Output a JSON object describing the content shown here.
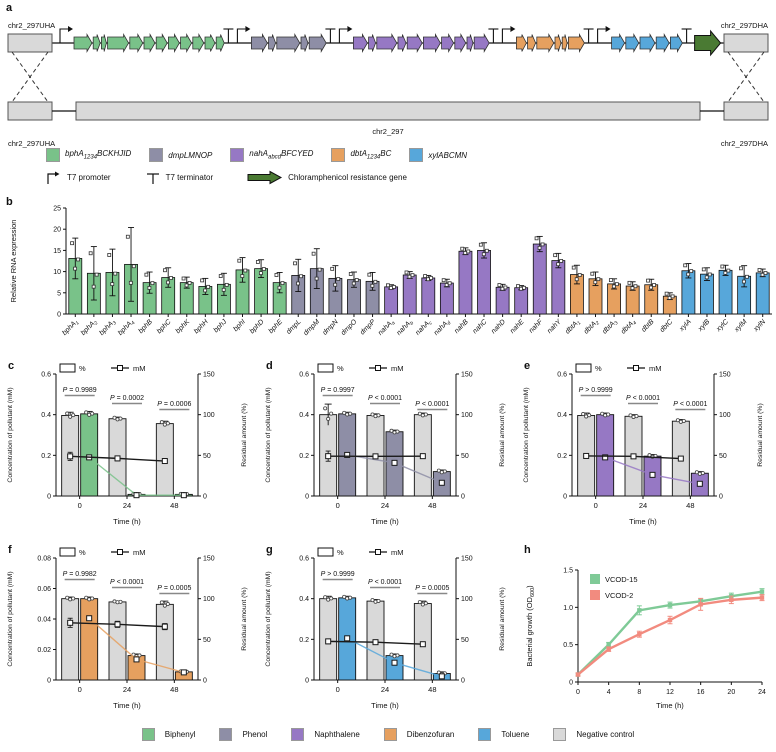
{
  "panels": {
    "a": "a",
    "b": "b",
    "c": "c",
    "d": "d",
    "e": "e",
    "f": "f",
    "g": "g",
    "h": "h"
  },
  "colors": {
    "biphenyl": "#79c289",
    "phenol": "#8e8ea6",
    "naphthalene": "#9678c4",
    "dibenzofuran": "#e6a05f",
    "toluene": "#57a7da",
    "negative": "#d9d9d9",
    "cm_gene": "#4a7a33",
    "vcod15": "#7fca97",
    "vcod2": "#f28b7f",
    "black": "#1a1a1a"
  },
  "panel_a": {
    "labels": {
      "top_left": "chr2_297UHA",
      "top_right": "chr2_297DHA",
      "bottom_left": "chr2_297UHA",
      "bottom_right": "chr2_297DHA",
      "center": "chr2_297"
    },
    "gene_groups": [
      {
        "color_key": "biphenyl",
        "widths": [
          18,
          7,
          5,
          21,
          13,
          11,
          11,
          11,
          11,
          11,
          10,
          8
        ]
      },
      {
        "color_key": "phenol",
        "widths": [
          16,
          7,
          23,
          7,
          17
        ]
      },
      {
        "color_key": "naphthalene",
        "widths": [
          14,
          7,
          20,
          8,
          15,
          17,
          12,
          11,
          6,
          15
        ]
      },
      {
        "color_key": "dibenzofuran",
        "widths": [
          10,
          8,
          17,
          6,
          5,
          16
        ]
      },
      {
        "color_key": "toluene",
        "widths": [
          13,
          13,
          15,
          13,
          12
        ]
      }
    ],
    "legend_genes": [
      {
        "color_key": "biphenyl",
        "pre": "bphA",
        "sub": "1234",
        "post": "BCKHJID"
      },
      {
        "color_key": "phenol",
        "pre": "dmpLMNOP",
        "sub": "",
        "post": ""
      },
      {
        "color_key": "naphthalene",
        "pre": "nahA",
        "sub": "abcd",
        "post": "BFCYED"
      },
      {
        "color_key": "dibenzofuran",
        "pre": "dbtA",
        "sub": "1234",
        "post": "BC"
      },
      {
        "color_key": "toluene",
        "pre": "xylABCMN",
        "sub": "",
        "post": ""
      }
    ],
    "legend_elements": [
      {
        "symbol": "t7-promoter",
        "label": "T7 promoter"
      },
      {
        "symbol": "t7-terminator",
        "label": "T7 terminator"
      },
      {
        "symbol": "cm-arrow",
        "label": "Chloramphenicol resistance gene"
      }
    ]
  },
  "dual_labels": {
    "left": "Concentration of pollutant (mM)",
    "right": "Residual amount (%)",
    "x": "Time (h)",
    "legend_pct": "%",
    "legend_mM": "mM"
  },
  "chart_data": [
    {
      "panel": "b",
      "type": "bar",
      "ylabel": "Relative RNA expression",
      "ylim": [
        0,
        25
      ],
      "yticks": [
        0,
        5,
        10,
        15,
        20,
        25
      ],
      "groups": [
        {
          "key": "biphenyl",
          "n": 12
        },
        {
          "key": "phenol",
          "n": 5
        },
        {
          "key": "naphthalene",
          "n": 10
        },
        {
          "key": "dibenzofuran",
          "n": 6
        },
        {
          "key": "toluene",
          "n": 5
        }
      ],
      "categories": [
        {
          "b": "bphA",
          "s": "1"
        },
        {
          "b": "bphA",
          "s": "2"
        },
        {
          "b": "bphA",
          "s": "3"
        },
        {
          "b": "bphA",
          "s": "4"
        },
        {
          "b": "bphB",
          "s": ""
        },
        {
          "b": "bphC",
          "s": ""
        },
        {
          "b": "bphK",
          "s": ""
        },
        {
          "b": "bphH",
          "s": ""
        },
        {
          "b": "bphJ",
          "s": ""
        },
        {
          "b": "bphI",
          "s": ""
        },
        {
          "b": "bphD",
          "s": ""
        },
        {
          "b": "bphE",
          "s": ""
        },
        {
          "b": "dmpL",
          "s": ""
        },
        {
          "b": "dmpM",
          "s": ""
        },
        {
          "b": "dmpN",
          "s": ""
        },
        {
          "b": "dmpO",
          "s": ""
        },
        {
          "b": "dmpP",
          "s": ""
        },
        {
          "b": "nahA",
          "s": "a"
        },
        {
          "b": "nahA",
          "s": "b"
        },
        {
          "b": "nahA",
          "s": "c"
        },
        {
          "b": "nahA",
          "s": "d"
        },
        {
          "b": "nahB",
          "s": ""
        },
        {
          "b": "nahC",
          "s": ""
        },
        {
          "b": "nahD",
          "s": ""
        },
        {
          "b": "nahE",
          "s": ""
        },
        {
          "b": "nahF",
          "s": ""
        },
        {
          "b": "nahY",
          "s": ""
        },
        {
          "b": "dbtA",
          "s": "1"
        },
        {
          "b": "dbtA",
          "s": "2"
        },
        {
          "b": "dbtA",
          "s": "3"
        },
        {
          "b": "dbtA",
          "s": "4"
        },
        {
          "b": "dbtB",
          "s": ""
        },
        {
          "b": "dbtC",
          "s": ""
        },
        {
          "b": "xylA",
          "s": ""
        },
        {
          "b": "xylB",
          "s": ""
        },
        {
          "b": "xylC",
          "s": ""
        },
        {
          "b": "xylM",
          "s": ""
        },
        {
          "b": "xylN",
          "s": ""
        }
      ],
      "values": [
        13.1,
        9.6,
        9.8,
        11.7,
        7.4,
        8.6,
        7.4,
        6.5,
        7.0,
        10.4,
        10.7,
        7.4,
        9.1,
        10.7,
        8.4,
        8.1,
        7.7,
        6.4,
        9.2,
        8.5,
        7.3,
        14.8,
        15.0,
        6.3,
        6.2,
        16.5,
        12.6,
        9.3,
        8.3,
        7.1,
        6.6,
        6.9,
        4.2,
        10.2,
        9.4,
        10.3,
        8.9,
        9.7
      ],
      "errors": [
        4.8,
        6.3,
        5.5,
        8.7,
        2.5,
        2.3,
        1.3,
        1.9,
        2.6,
        2.9,
        2.1,
        2.4,
        3.8,
        4.7,
        3.0,
        1.8,
        2.1,
        0.5,
        0.8,
        0.6,
        0.9,
        0.8,
        1.8,
        0.7,
        0.5,
        1.8,
        1.7,
        2.2,
        1.6,
        1.2,
        1.0,
        1.3,
        0.8,
        1.7,
        1.5,
        1.2,
        2.5,
        0.9
      ]
    },
    {
      "panel": "c",
      "type": "bar+line",
      "pollutant": "Biphenyl",
      "color_key": "biphenyl",
      "left_ylim": [
        0,
        0.6
      ],
      "left_yticks": [
        "0",
        "0.2",
        "0.4",
        "0.6"
      ],
      "right_ylim": [
        0,
        150
      ],
      "right_yticks": [
        "0",
        "50",
        "100",
        "150"
      ],
      "x_labels": [
        "0",
        "24",
        "48"
      ],
      "p_values": [
        "P = 0.9989",
        "P = 0.0002",
        "P = 0.0006"
      ],
      "bars_residual_pct": {
        "negative_control": [
          99,
          95,
          89
        ],
        "pollutant": [
          101,
          2,
          2
        ]
      },
      "bars_err": {
        "negative_control": [
          4,
          2,
          3
        ],
        "pollutant": [
          3,
          1,
          1
        ]
      },
      "lines_mM": {
        "negative_control": [
          0.195,
          0.185,
          0.172
        ],
        "pollutant": [
          0.19,
          0.004,
          0.004
        ]
      },
      "lines_err": {
        "negative_control": [
          0.02,
          0.012,
          0.012
        ],
        "pollutant": [
          0.015,
          0.003,
          0.003
        ]
      }
    },
    {
      "panel": "d",
      "type": "bar+line",
      "pollutant": "Phenol",
      "color_key": "phenol",
      "left_ylim": [
        0,
        0.6
      ],
      "left_yticks": [
        "0",
        "0.2",
        "0.4",
        "0.6"
      ],
      "right_ylim": [
        0,
        150
      ],
      "right_yticks": [
        "0",
        "50",
        "100",
        "150"
      ],
      "x_labels": [
        "0",
        "24",
        "48"
      ],
      "p_values": [
        "P = 0.9997",
        "P < 0.0001",
        "P < 0.0001"
      ],
      "bars_residual_pct": {
        "negative_control": [
          100,
          99,
          100
        ],
        "pollutant": [
          101,
          79,
          30
        ]
      },
      "bars_err": {
        "negative_control": [
          13,
          2,
          2
        ],
        "pollutant": [
          2,
          2,
          2
        ]
      },
      "lines_mM": {
        "negative_control": [
          0.196,
          0.195,
          0.196
        ],
        "pollutant": [
          0.202,
          0.163,
          0.065
        ]
      },
      "lines_err": {
        "negative_control": [
          0.025,
          0.01,
          0.01
        ],
        "pollutant": [
          0.012,
          0.01,
          0.008
        ]
      }
    },
    {
      "panel": "e",
      "type": "bar+line",
      "pollutant": "Naphthalene",
      "color_key": "naphthalene",
      "left_ylim": [
        0,
        0.6
      ],
      "left_yticks": [
        "0",
        "0.2",
        "0.4",
        "0.6"
      ],
      "right_ylim": [
        0,
        150
      ],
      "right_yticks": [
        "0",
        "50",
        "100",
        "150"
      ],
      "x_labels": [
        "0",
        "24",
        "48"
      ],
      "p_values": [
        "P > 0.9999",
        "P < 0.0001",
        "P < 0.0001"
      ],
      "bars_residual_pct": {
        "negative_control": [
          99,
          98,
          92
        ],
        "pollutant": [
          100,
          49,
          28
        ]
      },
      "bars_err": {
        "negative_control": [
          3,
          2,
          2
        ],
        "pollutant": [
          2,
          2,
          2
        ]
      },
      "lines_mM": {
        "negative_control": [
          0.197,
          0.195,
          0.184
        ],
        "pollutant": [
          0.19,
          0.104,
          0.06
        ]
      },
      "lines_err": {
        "negative_control": [
          0.012,
          0.01,
          0.01
        ],
        "pollutant": [
          0.012,
          0.008,
          0.006
        ]
      }
    },
    {
      "panel": "f",
      "type": "bar+line",
      "pollutant": "Dibenzofuran",
      "color_key": "dibenzofuran",
      "left_ylim": [
        0,
        0.08
      ],
      "left_yticks": [
        "0",
        "0.02",
        "0.04",
        "0.06",
        "0.08"
      ],
      "right_ylim": [
        0,
        150
      ],
      "right_yticks": [
        "0",
        "50",
        "100",
        "150"
      ],
      "x_labels": [
        "0",
        "24",
        "48"
      ],
      "p_values": [
        "P = 0.9982",
        "P < 0.0001",
        "P = 0.0005"
      ],
      "bars_residual_pct": {
        "negative_control": [
          100,
          96,
          93
        ],
        "pollutant": [
          100,
          30,
          10
        ]
      },
      "bars_err": {
        "negative_control": [
          2,
          1,
          4
        ],
        "pollutant": [
          2,
          2,
          1
        ]
      },
      "lines_mM": {
        "negative_control": [
          0.0375,
          0.0365,
          0.035
        ],
        "pollutant": [
          0.0405,
          0.0135,
          0.005
        ]
      },
      "lines_err": {
        "negative_control": [
          0.003,
          0.002,
          0.002
        ],
        "pollutant": [
          0.002,
          0.002,
          0.001
        ]
      }
    },
    {
      "panel": "g",
      "type": "bar+line",
      "pollutant": "Toluene",
      "color_key": "toluene",
      "left_ylim": [
        0,
        0.6
      ],
      "left_yticks": [
        "0",
        "0.2",
        "0.4",
        "0.6"
      ],
      "right_ylim": [
        0,
        150
      ],
      "right_yticks": [
        "0",
        "50",
        "100",
        "150"
      ],
      "x_labels": [
        "0",
        "24",
        "48"
      ],
      "p_values": [
        "P > 0.9999",
        "P < 0.0001",
        "P = 0.0005"
      ],
      "bars_residual_pct": {
        "negative_control": [
          100,
          97,
          94
        ],
        "pollutant": [
          101,
          30,
          8
        ]
      },
      "bars_err": {
        "negative_control": [
          3,
          2,
          3
        ],
        "pollutant": [
          2,
          2,
          2
        ]
      },
      "lines_mM": {
        "negative_control": [
          0.19,
          0.186,
          0.176
        ],
        "pollutant": [
          0.205,
          0.085,
          0.018
        ]
      },
      "lines_err": {
        "negative_control": [
          0.012,
          0.01,
          0.01
        ],
        "pollutant": [
          0.012,
          0.008,
          0.005
        ]
      }
    },
    {
      "panel": "h",
      "type": "line",
      "ylabel": {
        "pre": "Bacterial growth (OD",
        "sub": "600",
        "post": ")"
      },
      "xlabel": "Time (h)",
      "ylim": [
        0,
        1.5
      ],
      "yticks": [
        "0",
        "0.5",
        "1.0",
        "1.5"
      ],
      "x": [
        0,
        4,
        8,
        12,
        16,
        20,
        24
      ],
      "series": [
        {
          "name": "VCOD-15",
          "color_key": "vcod15",
          "values": [
            0.1,
            0.5,
            0.96,
            1.03,
            1.08,
            1.15,
            1.21
          ],
          "errors": [
            0.02,
            0.03,
            0.06,
            0.04,
            0.03,
            0.04,
            0.04
          ]
        },
        {
          "name": "VCOD-2",
          "color_key": "vcod2",
          "values": [
            0.1,
            0.44,
            0.64,
            0.83,
            1.04,
            1.1,
            1.13
          ],
          "errors": [
            0.02,
            0.03,
            0.04,
            0.05,
            0.08,
            0.05,
            0.04
          ]
        }
      ]
    }
  ],
  "bottom_legend": [
    {
      "label": "Biphenyl",
      "color_key": "biphenyl"
    },
    {
      "label": "Phenol",
      "color_key": "phenol"
    },
    {
      "label": "Naphthalene",
      "color_key": "naphthalene"
    },
    {
      "label": "Dibenzofuran",
      "color_key": "dibenzofuran"
    },
    {
      "label": "Toluene",
      "color_key": "toluene"
    },
    {
      "label": "Negative control",
      "color_key": "negative"
    }
  ]
}
